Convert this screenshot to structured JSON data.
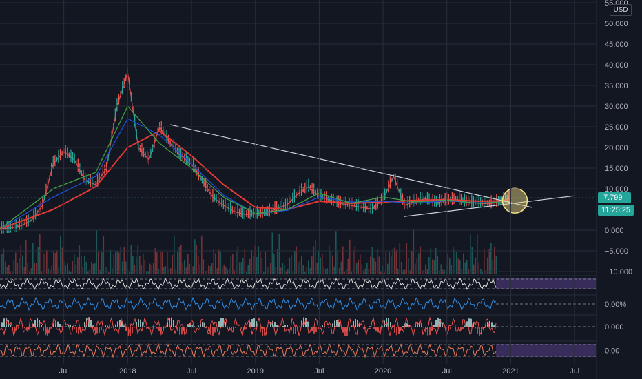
{
  "chart_data": {
    "type": "line",
    "symbol_currency": "USD",
    "y_axis": {
      "ylim": [
        -10000,
        55000
      ],
      "ticks": [
        {
          "label": "55.000",
          "value": 55000
        },
        {
          "label": "50.000",
          "value": 50000
        },
        {
          "label": "45.000",
          "value": 45000
        },
        {
          "label": "40.000",
          "value": 40000
        },
        {
          "label": "35.000",
          "value": 35000
        },
        {
          "label": "30.000",
          "value": 30000
        },
        {
          "label": "25.000",
          "value": 25000
        },
        {
          "label": "20.000",
          "value": 20000
        },
        {
          "label": "15.000",
          "value": 15000
        },
        {
          "label": "10.000",
          "value": 10000
        },
        {
          "label": "0.000",
          "value": 0
        },
        {
          "label": "−5.000",
          "value": -5000
        },
        {
          "label": "−10.000",
          "value": -10000
        }
      ]
    },
    "x_axis": {
      "xlim": [
        "2017-01",
        "2021-09"
      ],
      "ticks": [
        {
          "label": "Jul",
          "date": "2017-07"
        },
        {
          "label": "2018",
          "date": "2018-01"
        },
        {
          "label": "Jul",
          "date": "2018-07"
        },
        {
          "label": "2019",
          "date": "2019-01"
        },
        {
          "label": "Jul",
          "date": "2019-07"
        },
        {
          "label": "2020",
          "date": "2020-01"
        },
        {
          "label": "Jul",
          "date": "2020-07"
        },
        {
          "label": "2021",
          "date": "2021-01"
        },
        {
          "label": "Jul",
          "date": "2021-07"
        }
      ]
    },
    "price_series": {
      "dates": [
        "2017-01",
        "2017-02",
        "2017-03",
        "2017-04",
        "2017-05",
        "2017-06",
        "2017-07",
        "2017-08",
        "2017-09",
        "2017-10",
        "2017-11",
        "2017-12",
        "2018-01",
        "2018-02",
        "2018-03",
        "2018-04",
        "2018-05",
        "2018-06",
        "2018-07",
        "2018-08",
        "2018-09",
        "2018-10",
        "2018-11",
        "2018-12",
        "2019-01",
        "2019-02",
        "2019-03",
        "2019-04",
        "2019-05",
        "2019-06",
        "2019-07",
        "2019-08",
        "2019-09",
        "2019-10",
        "2019-11",
        "2019-12",
        "2020-01",
        "2020-02",
        "2020-03",
        "2020-04",
        "2020-05",
        "2020-06",
        "2020-07",
        "2020-08",
        "2020-09",
        "2020-10",
        "2020-11",
        "2020-12",
        "2021-01"
      ],
      "values": [
        300,
        500,
        1100,
        2500,
        6000,
        16000,
        19000,
        17000,
        12000,
        11000,
        15000,
        30000,
        38000,
        20000,
        17000,
        25000,
        21000,
        18000,
        16000,
        12000,
        8000,
        6000,
        4500,
        3800,
        3900,
        4100,
        5200,
        6200,
        8800,
        10500,
        8200,
        7300,
        6400,
        6000,
        5500,
        5100,
        7500,
        13000,
        6000,
        7000,
        7600,
        6600,
        7200,
        7400,
        6700,
        6500,
        6400,
        6900,
        7799
      ]
    },
    "ma_series": [
      {
        "color": "#e53935",
        "dates": [
          "2017-01",
          "2017-06",
          "2017-10",
          "2018-01",
          "2018-04",
          "2018-07",
          "2018-10",
          "2019-01",
          "2019-04",
          "2019-07",
          "2019-10",
          "2020-01",
          "2020-04",
          "2020-07",
          "2020-10",
          "2021-01"
        ],
        "values": [
          300,
          5000,
          10500,
          20000,
          24000,
          18000,
          11000,
          5500,
          5000,
          7000,
          6500,
          6800,
          7200,
          7400,
          7000,
          7100
        ]
      },
      {
        "color": "#1e4fd8",
        "dates": [
          "2017-01",
          "2017-06",
          "2017-10",
          "2018-01",
          "2018-04",
          "2018-07",
          "2018-10",
          "2019-01",
          "2019-04",
          "2019-07",
          "2019-10",
          "2020-01",
          "2020-04",
          "2020-07",
          "2020-10",
          "2021-01"
        ],
        "values": [
          300,
          8000,
          13000,
          27000,
          23000,
          16000,
          8500,
          4000,
          4800,
          8000,
          6800,
          7000,
          6500,
          7100,
          6600,
          6900
        ]
      },
      {
        "color": "#43a047",
        "dates": [
          "2017-01",
          "2017-06",
          "2017-10",
          "2018-01",
          "2018-04",
          "2018-07",
          "2018-10",
          "2019-01",
          "2019-04",
          "2019-07",
          "2019-10",
          "2020-01",
          "2020-04",
          "2020-07",
          "2020-10",
          "2021-01"
        ],
        "values": [
          300,
          10000,
          14000,
          30000,
          21000,
          15000,
          8000,
          4000,
          5000,
          9000,
          6500,
          8000,
          6800,
          7300,
          6500,
          7000
        ]
      }
    ],
    "trendlines": [
      {
        "from": {
          "date": "2018-05",
          "value": 25500
        },
        "to": {
          "date": "2021-03",
          "value": 5500
        }
      },
      {
        "from": {
          "date": "2020-03",
          "value": 3300
        },
        "to": {
          "date": "2021-07",
          "value": 8300
        }
      }
    ],
    "highlight_circle": {
      "date": "2021-01",
      "value": 7799
    },
    "last_price_label": "7.799",
    "countdown_label": "11:25:25",
    "indicator_panes": [
      {
        "name": "pane-1",
        "value_label": "",
        "color": "#e0e0e0"
      },
      {
        "name": "pane-2",
        "value_label": "0.00%",
        "color": "#2f8de4"
      },
      {
        "name": "pane-3",
        "value_label": "0.000",
        "color": "#ef5350"
      },
      {
        "name": "pane-4",
        "value_label": "0.00",
        "color": "#ef7a5a"
      }
    ]
  },
  "colors": {
    "background": "#131722",
    "up": "#26a69a",
    "down": "#ef5350",
    "grid": "#2a2e39",
    "trendline": "#d1d4dc",
    "highlight": "#f3e08a"
  }
}
